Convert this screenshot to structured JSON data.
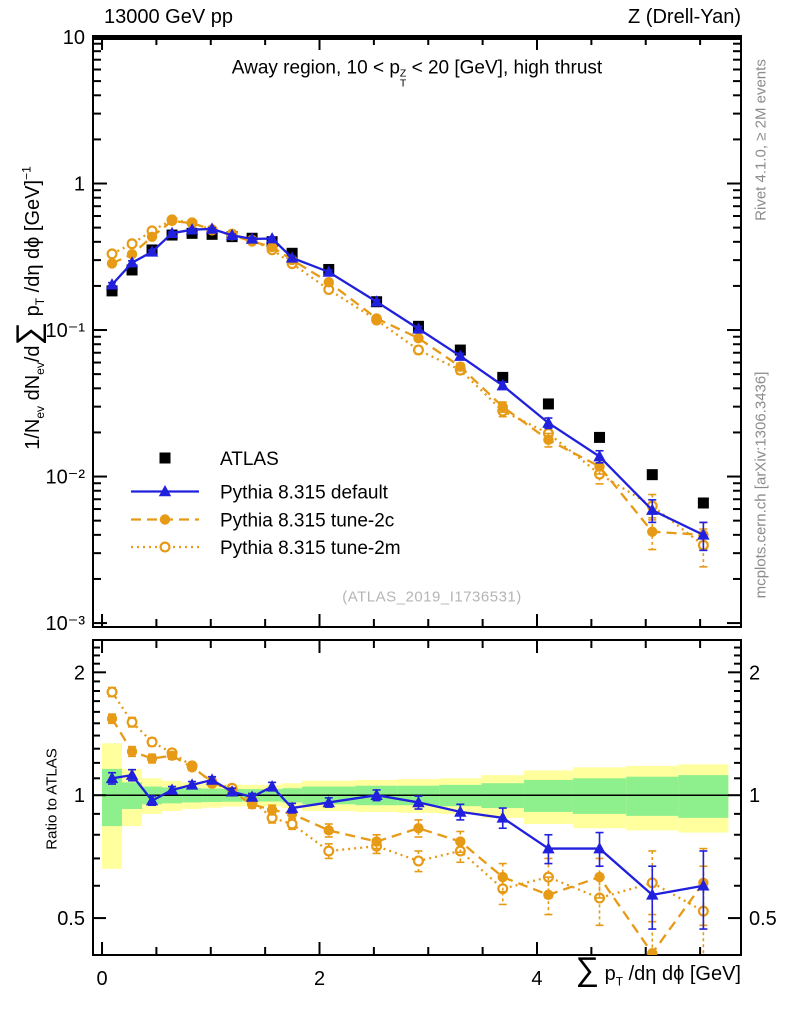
{
  "page": {
    "header_left": "13000 GeV pp",
    "header_right": "Z (Drell-Yan)",
    "watermark": "(ATLAS_2019_I1736531)",
    "side_top": "Rivet 4.1.0, ≥ 2M events",
    "side_bottom": "mcplots.cern.ch [arXiv:1306.3436]"
  },
  "labels": {
    "ratio_ylabel": "Ratio to ATLAS",
    "title_segments": [
      {
        "t": "Away region, 10 < p"
      },
      {
        "k": "stack",
        "sup": "Z",
        "sub": "T"
      },
      {
        "t": " < 20 [GeV], high thrust"
      }
    ],
    "ylabel_segments": [
      {
        "t": "1/N"
      },
      {
        "t": "ev",
        "k": "sub"
      },
      {
        "t": " dN"
      },
      {
        "t": "ev",
        "k": "sub"
      },
      {
        "t": "/d"
      },
      {
        "t": "∑",
        "k": "sig"
      },
      {
        "t": " p"
      },
      {
        "t": "T",
        "k": "sub"
      },
      {
        "t": " /dη dϕ  [GeV]"
      },
      {
        "t": "−1",
        "k": "sup"
      }
    ],
    "xlabel_segments": [
      {
        "t": "∑",
        "k": "sig"
      },
      {
        "t": " p"
      },
      {
        "t": "T",
        "k": "sub"
      },
      {
        "t": " /dη dϕ [GeV]"
      }
    ]
  },
  "chart_data": {
    "type": "line",
    "title": "Away region, 10 < p_T^Z < 20 [GeV], high thrust",
    "xlabel": "sum p_T /deta dphi [GeV]",
    "ylabel": "1/N_ev dN_ev/d sum p_T/deta dphi [GeV]^-1",
    "ratio_label": "Ratio to ATLAS",
    "x_bin_edges": [
      0,
      0.184,
      0.368,
      0.552,
      0.736,
      0.92,
      1.104,
      1.288,
      1.472,
      1.656,
      1.84,
      2.33,
      2.72,
      3.1,
      3.49,
      3.88,
      4.33,
      4.82,
      5.3,
      5.76
    ],
    "x": [
      0.092,
      0.276,
      0.46,
      0.644,
      0.828,
      1.012,
      1.196,
      1.38,
      1.564,
      1.748,
      2.085,
      2.525,
      2.91,
      3.295,
      3.685,
      4.105,
      4.575,
      5.06,
      5.53
    ],
    "series": [
      {
        "name": "ATLAS",
        "marker": "square",
        "color": "#000000",
        "line": "none",
        "values": [
          0.185,
          0.257,
          0.352,
          0.445,
          0.457,
          0.45,
          0.434,
          0.423,
          0.401,
          0.334,
          0.259,
          0.156,
          0.106,
          0.073,
          0.0475,
          0.0313,
          0.0185,
          0.0103,
          0.0066
        ],
        "err_frac": [
          0.02,
          0.015,
          0.012,
          0.01,
          0.01,
          0.01,
          0.01,
          0.01,
          0.012,
          0.012,
          0.015,
          0.015,
          0.02,
          0.02,
          0.025,
          0.03,
          0.035,
          0.04,
          0.05
        ]
      },
      {
        "name": "Pythia 8.315 default",
        "marker": "triangle",
        "color": "#2020dd",
        "line": "solid",
        "values": [
          0.204,
          0.288,
          0.342,
          0.458,
          0.484,
          0.49,
          0.443,
          0.419,
          0.421,
          0.311,
          0.249,
          0.156,
          0.102,
          0.0664,
          0.0418,
          0.0232,
          0.0137,
          0.0059,
          0.004
        ],
        "ratio": [
          1.1,
          1.12,
          0.97,
          1.03,
          1.06,
          1.09,
          1.02,
          0.99,
          1.05,
          0.93,
          0.96,
          1.0,
          0.96,
          0.91,
          0.88,
          0.74,
          0.74,
          0.57,
          0.6
        ],
        "ratio_err": [
          0.035,
          0.035,
          0.025,
          0.02,
          0.02,
          0.02,
          0.02,
          0.02,
          0.025,
          0.025,
          0.025,
          0.03,
          0.035,
          0.04,
          0.05,
          0.06,
          0.07,
          0.1,
          0.13
        ]
      },
      {
        "name": "Pythia 8.315 tune-2c",
        "marker": "circle",
        "color": "#e69a15",
        "line": "dash",
        "values": [
          0.285,
          0.329,
          0.433,
          0.556,
          0.535,
          0.486,
          0.443,
          0.402,
          0.369,
          0.301,
          0.212,
          0.12,
          0.088,
          0.0562,
          0.0299,
          0.0178,
          0.0117,
          0.0042,
          0.004
        ],
        "ratio": [
          1.54,
          1.28,
          1.23,
          1.25,
          1.17,
          1.08,
          1.02,
          0.95,
          0.92,
          0.9,
          0.82,
          0.77,
          0.83,
          0.77,
          0.63,
          0.57,
          0.63,
          0.41,
          0.61
        ],
        "ratio_err": [
          0.04,
          0.035,
          0.03,
          0.025,
          0.02,
          0.02,
          0.02,
          0.02,
          0.025,
          0.025,
          0.03,
          0.03,
          0.04,
          0.045,
          0.05,
          0.06,
          0.07,
          0.1,
          0.13
        ]
      },
      {
        "name": "Pythia 8.315 tune-2m",
        "marker": "circle-open",
        "color": "#e69a15",
        "line": "dot",
        "values": [
          0.331,
          0.388,
          0.475,
          0.565,
          0.539,
          0.482,
          0.451,
          0.41,
          0.353,
          0.284,
          0.189,
          0.117,
          0.0731,
          0.0533,
          0.028,
          0.0197,
          0.0104,
          0.0063,
          0.0034
        ],
        "ratio": [
          1.79,
          1.51,
          1.35,
          1.27,
          1.18,
          1.07,
          1.04,
          0.97,
          0.88,
          0.85,
          0.73,
          0.75,
          0.69,
          0.73,
          0.59,
          0.63,
          0.56,
          0.61,
          0.52
        ],
        "ratio_err": [
          0.045,
          0.04,
          0.03,
          0.025,
          0.02,
          0.02,
          0.02,
          0.02,
          0.025,
          0.025,
          0.03,
          0.03,
          0.04,
          0.045,
          0.05,
          0.07,
          0.08,
          0.12,
          0.15
        ]
      }
    ],
    "bands": {
      "green_color": "#8df08d",
      "yellow_color": "#ffff9e",
      "green_frac": [
        0.16,
        0.075,
        0.05,
        0.045,
        0.04,
        0.038,
        0.036,
        0.035,
        0.035,
        0.04,
        0.05,
        0.055,
        0.055,
        0.06,
        0.07,
        0.09,
        0.1,
        0.11,
        0.12
      ],
      "yellow_frac": [
        0.34,
        0.16,
        0.1,
        0.085,
        0.075,
        0.068,
        0.062,
        0.06,
        0.06,
        0.07,
        0.085,
        0.09,
        0.095,
        0.1,
        0.12,
        0.15,
        0.17,
        0.18,
        0.19
      ]
    },
    "axes": {
      "xmin": -0.083,
      "xmax": 5.876,
      "ymin": 0.00094,
      "ymax": 10,
      "rmin": 0.406,
      "rmax": 2.4,
      "x_ticks": [
        {
          "v": 0,
          "l": "0"
        },
        {
          "v": 2,
          "l": "2"
        },
        {
          "v": 4,
          "l": "4"
        }
      ],
      "x_minor": [
        0.5,
        1,
        1.5,
        2.5,
        3,
        3.5,
        4.5,
        5,
        5.5
      ],
      "y_ticks": [
        {
          "v": 10,
          "l": "10"
        },
        {
          "v": 1,
          "l": "1"
        },
        {
          "v": 0.1,
          "l": "10⁻¹"
        },
        {
          "v": 0.01,
          "l": "10⁻²"
        },
        {
          "v": 0.001,
          "l": "10⁻³"
        }
      ],
      "r_ticks": [
        {
          "v": 2,
          "l": "2"
        },
        {
          "v": 1,
          "l": "1"
        },
        {
          "v": 0.5,
          "l": "0.5"
        }
      ]
    },
    "legend": [
      "ATLAS",
      "Pythia 8.315 default",
      "Pythia 8.315 tune-2c",
      "Pythia 8.315 tune-2m"
    ],
    "legend_position": "left-middle",
    "grid": false
  }
}
